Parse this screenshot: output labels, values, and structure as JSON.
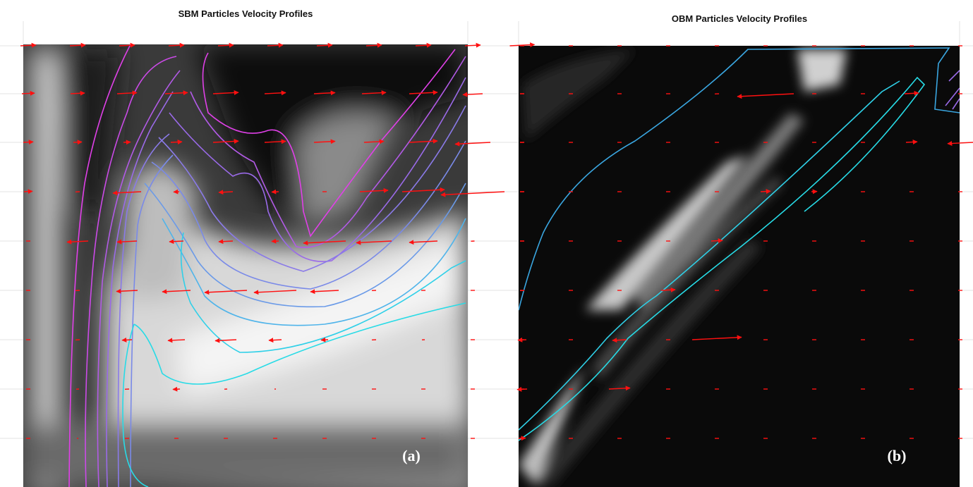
{
  "panels": [
    {
      "title": "SBM Particles Velocity Profiles",
      "label": "(a)"
    },
    {
      "title": "OBM Particles Velocity Profiles",
      "label": "(b)"
    }
  ]
}
